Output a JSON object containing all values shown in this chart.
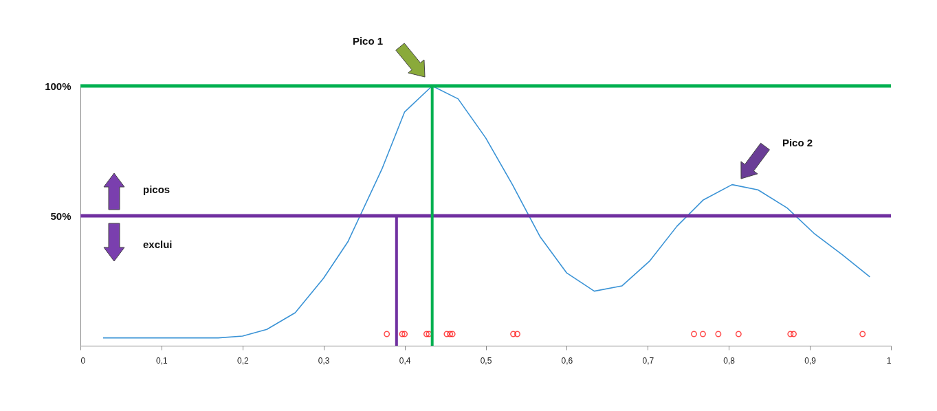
{
  "chart_data": {
    "type": "line",
    "xlim": [
      0,
      1
    ],
    "xticks": [
      0,
      {
        "value": 0.1,
        "label": "0,1"
      },
      {
        "value": 0.2,
        "label": "0,2"
      },
      {
        "value": 0.3,
        "label": "0,3"
      },
      {
        "value": 0.4,
        "label": "0,4"
      },
      {
        "value": 0.5,
        "label": "0,5"
      },
      {
        "value": 0.6,
        "label": "0,6"
      },
      {
        "value": 0.7,
        "label": "0,7"
      },
      {
        "value": 0.8,
        "label": "0,8"
      },
      {
        "value": 0.9,
        "label": "0,9"
      },
      1
    ],
    "ylim": [
      0,
      100
    ],
    "yticks": [
      {
        "value": 50,
        "label": "50%"
      },
      {
        "value": 100,
        "label": "100%"
      }
    ],
    "grid": false,
    "series": [
      {
        "color": "#3a93d6",
        "x": [
          0.028,
          0.17,
          0.2,
          0.23,
          0.265,
          0.3,
          0.33,
          0.372,
          0.4,
          0.434,
          0.466,
          0.5,
          0.533,
          0.567,
          0.6,
          0.634,
          0.668,
          0.702,
          0.736,
          0.768,
          0.804,
          0.836,
          0.872,
          0.906,
          0.94,
          0.974
        ],
        "values": [
          3,
          3,
          3.7,
          6.3,
          12.7,
          26,
          40,
          68,
          90,
          100,
          95,
          80,
          62,
          42,
          28,
          21,
          23,
          32.5,
          46,
          56,
          62,
          60,
          53,
          43,
          35,
          26.5
        ]
      },
      {
        "type": "scatter",
        "marker": "circle",
        "color": "#ff0000",
        "x": [
          0.378,
          0.397,
          0.4,
          0.427,
          0.43,
          0.452,
          0.456,
          0.459,
          0.534,
          0.539,
          0.757,
          0.768,
          0.787,
          0.812,
          0.876,
          0.88,
          0.965
        ],
        "values": [
          4.5,
          4.5,
          4.5,
          4.5,
          4.5,
          4.5,
          4.5,
          4.5,
          4.5,
          4.5,
          4.5,
          4.5,
          4.5,
          4.5,
          4.5,
          4.5,
          4.5
        ]
      },
      {
        "color": "#00b050",
        "x": [
          0.434,
          0.434
        ],
        "values": [
          0,
          100
        ]
      },
      {
        "color": "#7030a0",
        "x": [
          0.39,
          0.39
        ],
        "values": [
          0,
          50
        ]
      }
    ],
    "ref_lines": [
      {
        "axis": "y",
        "value": 100,
        "color": "#00b050"
      },
      {
        "axis": "y",
        "value": 50,
        "color": "#7030a0"
      }
    ],
    "annotations": [
      "Pico 1",
      "Pico 2",
      "picos",
      "exclui"
    ]
  }
}
